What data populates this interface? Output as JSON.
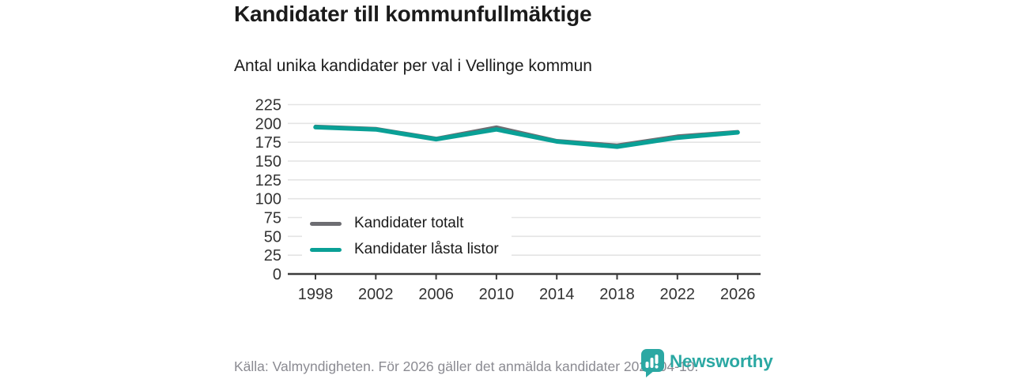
{
  "header": {
    "title": "Kandidater till kommunfullmäktige",
    "subtitle": "Antal unika kandidater per val i Vellinge kommun"
  },
  "chart_data": {
    "type": "line",
    "x": [
      1998,
      2002,
      2006,
      2010,
      2014,
      2018,
      2022,
      2026
    ],
    "series": [
      {
        "name": "Kandidater totalt",
        "color": "#6d6d72",
        "values": [
          196,
          193,
          180,
          195,
          177,
          171,
          183,
          189
        ]
      },
      {
        "name": "Kandidater låsta listor",
        "color": "#0aa096",
        "values": [
          195,
          192,
          179,
          192,
          176,
          169,
          181,
          188
        ]
      }
    ],
    "ylim": [
      0,
      225
    ],
    "ytick_step": 25,
    "grid": true,
    "legend_position": "inside-left",
    "title": "Kandidater till kommunfullmäktige",
    "subtitle": "Antal unika kandidater per val i Vellinge kommun",
    "xlabel": "",
    "ylabel": ""
  },
  "footer": {
    "source": "Källa: Valmyndigheten. För 2026 gäller det anmälda kandidater 2026-04-10."
  },
  "branding": {
    "name": "Newsworthy",
    "color": "#2ba8a3"
  }
}
